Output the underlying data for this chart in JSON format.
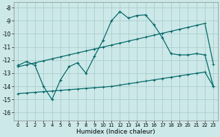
{
  "xlabel": "Humidex (Indice chaleur)",
  "background_color": "#cce8e8",
  "grid_color": "#aacccc",
  "line_color": "#006666",
  "xlim": [
    -0.5,
    23.5
  ],
  "ylim": [
    -16.6,
    -7.6
  ],
  "xticks": [
    0,
    1,
    2,
    3,
    4,
    5,
    6,
    7,
    8,
    9,
    10,
    11,
    12,
    13,
    14,
    15,
    16,
    17,
    18,
    19,
    20,
    21,
    22,
    23
  ],
  "yticks": [
    -8,
    -9,
    -10,
    -11,
    -12,
    -13,
    -14,
    -15,
    -16
  ],
  "line1_y": [
    -12.4,
    -12.1,
    -12.4,
    -14.0,
    -15.0,
    -13.5,
    -12.5,
    -12.2,
    -13.0,
    -11.7,
    -10.5,
    -9.0,
    -8.3,
    -8.8,
    -8.6,
    -8.55,
    -9.3,
    -10.3,
    -11.5,
    -11.6,
    -11.6,
    -11.5,
    -11.6,
    -14.0
  ],
  "line2_y": [
    -12.5,
    -12.35,
    -12.2,
    -12.05,
    -11.9,
    -11.75,
    -11.6,
    -11.45,
    -11.3,
    -11.15,
    -11.0,
    -10.85,
    -10.7,
    -10.55,
    -10.4,
    -10.25,
    -10.1,
    -9.95,
    -9.8,
    -9.65,
    -9.5,
    -9.35,
    -9.2,
    -12.3
  ],
  "line3_y": [
    -14.55,
    -14.5,
    -14.45,
    -14.4,
    -14.35,
    -14.3,
    -14.25,
    -14.2,
    -14.15,
    -14.1,
    -14.05,
    -14.0,
    -13.9,
    -13.8,
    -13.7,
    -13.6,
    -13.5,
    -13.4,
    -13.3,
    -13.2,
    -13.1,
    -13.0,
    -12.9,
    -14.0
  ]
}
